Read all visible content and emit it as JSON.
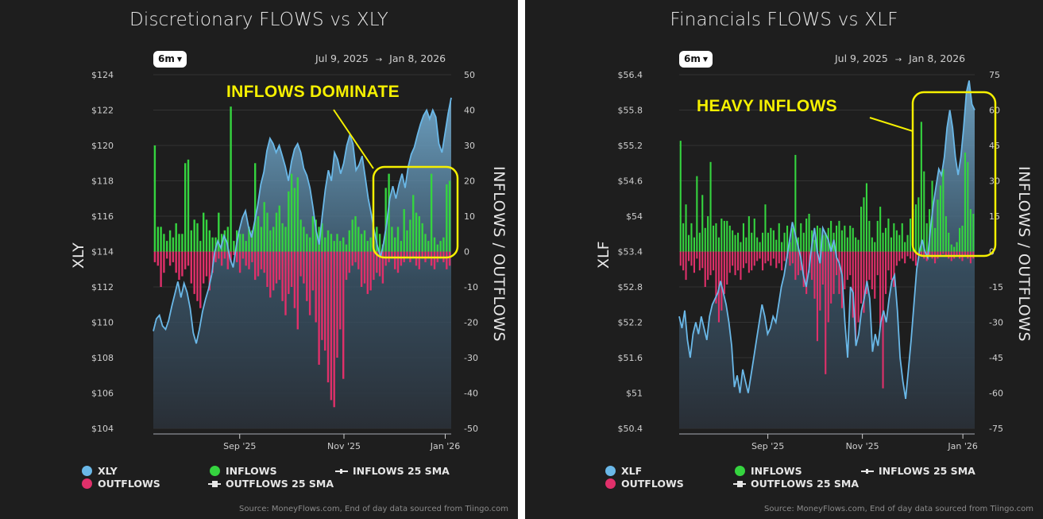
{
  "colors": {
    "panel_bg": "#1e1e1e",
    "price_line": "#6ab8e8",
    "inflows": "#35d43f",
    "outflows": "#e0306a",
    "annotation": "#f5f000",
    "grid": "#333333"
  },
  "panels": [
    {
      "title": "Discretionary FLOWS vs XLY",
      "range_button": "6m",
      "date_start": "Jul 9, 2025",
      "date_arrow": "→",
      "date_end": "Jan 8, 2026",
      "left_axis_label": "XLY",
      "right_axis_label": "INFLOWS / OUTFLOWS",
      "annotation": "INFLOWS DOMINATE",
      "legend": {
        "price": "XLY",
        "inflows": "INFLOWS",
        "inflows_sma": "INFLOWS 25 SMA",
        "outflows": "OUTFLOWS",
        "outflows_sma": "OUTFLOWS 25 SMA"
      },
      "source": "Source: MoneyFlows.com, End of day data sourced from Tiingo.com"
    },
    {
      "title": "Financials FLOWS vs XLF",
      "range_button": "6m",
      "date_start": "Jul 9, 2025",
      "date_arrow": "→",
      "date_end": "Jan 8, 2026",
      "left_axis_label": "XLF",
      "right_axis_label": "INFLOWS / OUTFLOWS",
      "annotation": "HEAVY INFLOWS",
      "legend": {
        "price": "XLF",
        "inflows": "INFLOWS",
        "inflows_sma": "INFLOWS 25 SMA",
        "outflows": "OUTFLOWS",
        "outflows_sma": "OUTFLOWS 25 SMA"
      },
      "source": "Source: MoneyFlows.com, End of day data sourced from Tiingo.com"
    }
  ],
  "chart_data": [
    {
      "type": "bar+area",
      "title": "Discretionary FLOWS vs XLY",
      "xlabel": "",
      "ylabel_left": "XLY",
      "ylabel_right": "INFLOWS / OUTFLOWS",
      "x_ticks": [
        "Sep '25",
        "Nov '25",
        "Jan '26"
      ],
      "x_tick_pos": [
        0.29,
        0.64,
        0.98
      ],
      "y_left_ticks": [
        "$124",
        "$122",
        "$120",
        "$118",
        "$116",
        "$114",
        "$112",
        "$110",
        "$108",
        "$106",
        "$104"
      ],
      "y_left_range": [
        104,
        124
      ],
      "y_right_ticks": [
        "50",
        "40",
        "30",
        "20",
        "10",
        "0",
        "-10",
        "-20",
        "-30",
        "-40",
        "-50"
      ],
      "y_right_range": [
        -50,
        50
      ],
      "legend": [
        "XLY",
        "INFLOWS",
        "INFLOWS 25 SMA",
        "OUTFLOWS",
        "OUTFLOWS 25 SMA"
      ],
      "annotation": {
        "text": "INFLOWS DOMINATE",
        "box_x_range": [
          0.74,
          1.0
        ],
        "box_y_range": [
          0,
          22
        ]
      },
      "series": [
        {
          "name": "XLY",
          "kind": "area",
          "values": [
            109.5,
            110.2,
            110.4,
            109.8,
            109.6,
            110.1,
            110.9,
            111.6,
            112.3,
            111.4,
            112.2,
            111.7,
            110.8,
            109.4,
            108.8,
            109.6,
            110.6,
            111.3,
            111.9,
            112.7,
            114.0,
            114.6,
            114.2,
            114.9,
            114.5,
            113.6,
            113.1,
            114.3,
            115.2,
            115.9,
            116.3,
            115.4,
            114.8,
            115.7,
            116.6,
            117.8,
            118.5,
            119.7,
            120.4,
            120.1,
            119.6,
            120.0,
            119.4,
            118.8,
            118.0,
            119.1,
            119.8,
            120.1,
            119.6,
            118.7,
            118.3,
            117.6,
            116.5,
            115.2,
            114.4,
            116.0,
            117.5,
            118.6,
            118.0,
            119.6,
            119.2,
            118.4,
            119.0,
            120.0,
            120.6,
            120.1,
            118.6,
            118.9,
            119.4,
            118.2,
            117.0,
            116.1,
            115.1,
            114.3,
            113.7,
            114.5,
            115.6,
            117.0,
            117.7,
            117.0,
            117.8,
            118.4,
            117.6,
            118.8,
            119.5,
            119.9,
            120.6,
            121.2,
            121.7,
            122.0,
            121.5,
            122.0,
            121.6,
            120.1,
            119.6,
            120.7,
            121.8,
            122.7
          ]
        },
        {
          "name": "INFLOWS",
          "kind": "bar",
          "values": [
            30,
            7,
            7,
            5,
            3,
            6,
            4,
            8,
            5,
            5,
            25,
            26,
            6,
            9,
            8,
            3,
            11,
            9,
            6,
            4,
            4,
            11,
            5,
            6,
            7,
            41,
            3,
            6,
            5,
            5,
            3,
            7,
            6,
            25,
            10,
            7,
            14,
            11,
            6,
            7,
            11,
            13,
            8,
            7,
            17,
            22,
            18,
            21,
            9,
            7,
            5,
            4,
            10,
            9,
            7,
            8,
            4,
            6,
            5,
            3,
            5,
            3,
            4,
            2,
            6,
            9,
            10,
            7,
            5,
            6,
            3,
            4,
            3,
            7,
            5,
            2,
            18,
            22,
            7,
            4,
            7,
            3,
            12,
            6,
            9,
            16,
            11,
            10,
            8,
            5,
            3,
            22,
            4,
            2,
            3,
            4,
            19,
            20
          ]
        },
        {
          "name": "OUTFLOWS",
          "kind": "bar",
          "values": [
            -3,
            -4,
            -10,
            -6,
            -2,
            -4,
            -3,
            -6,
            -8,
            -7,
            -5,
            -4,
            -9,
            -12,
            -14,
            -16,
            -9,
            -7,
            -11,
            -6,
            -3,
            -2,
            -4,
            -2,
            -5,
            -3,
            -1,
            -3,
            -6,
            -2,
            -4,
            -5,
            -3,
            -8,
            -7,
            -5,
            -6,
            -10,
            -13,
            -11,
            -9,
            -8,
            -14,
            -18,
            -12,
            -10,
            -16,
            -22,
            -7,
            -9,
            -14,
            -18,
            -11,
            -20,
            -32,
            -25,
            -28,
            -37,
            -42,
            -44,
            -30,
            -22,
            -36,
            -8,
            -6,
            -4,
            -3,
            -5,
            -10,
            -9,
            -12,
            -11,
            -8,
            -6,
            -7,
            -9,
            -4,
            -3,
            -2,
            -5,
            -6,
            -4,
            -3,
            -2,
            -3,
            -2,
            -4,
            -5,
            -2,
            -3,
            -2,
            -4,
            -5,
            -3,
            -2,
            -3,
            -5,
            -4
          ]
        }
      ]
    },
    {
      "type": "bar+area",
      "title": "Financials FLOWS vs XLF",
      "xlabel": "",
      "ylabel_left": "XLF",
      "ylabel_right": "INFLOWS / OUTFLOWS",
      "x_ticks": [
        "Sep '25",
        "Nov '25",
        "Jan '26"
      ],
      "x_tick_pos": [
        0.3,
        0.62,
        0.96
      ],
      "y_left_ticks": [
        "$56.4",
        "$55.8",
        "$55.2",
        "$54.6",
        "$54",
        "$53.4",
        "$52.8",
        "$52.2",
        "$51.6",
        "$51",
        "$50.4"
      ],
      "y_left_range": [
        50.4,
        56.4
      ],
      "y_right_ticks": [
        "75",
        "60",
        "45",
        "30",
        "15",
        "0",
        "-15",
        "-30",
        "-45",
        "-60",
        "-75"
      ],
      "y_right_range": [
        -75,
        75
      ],
      "legend": [
        "XLF",
        "INFLOWS",
        "INFLOWS 25 SMA",
        "OUTFLOWS",
        "OUTFLOWS 25 SMA"
      ],
      "annotation": {
        "text": "HEAVY INFLOWS",
        "box_x_range": [
          0.78,
          1.0
        ],
        "box_y_range": [
          0,
          70
        ]
      },
      "series": [
        {
          "name": "XLF",
          "kind": "area",
          "values": [
            52.3,
            52.1,
            52.4,
            51.9,
            51.6,
            52.0,
            52.2,
            52.0,
            52.3,
            52.1,
            51.9,
            52.3,
            52.5,
            52.6,
            52.7,
            52.9,
            52.7,
            52.5,
            52.2,
            51.8,
            51.1,
            51.3,
            51.0,
            51.4,
            51.2,
            51.0,
            51.3,
            51.6,
            51.9,
            52.2,
            52.5,
            52.3,
            52.0,
            52.1,
            52.3,
            52.2,
            52.5,
            52.8,
            53.0,
            53.3,
            53.6,
            53.9,
            53.7,
            53.5,
            53.3,
            53.0,
            52.8,
            53.1,
            53.5,
            53.8,
            53.4,
            53.2,
            53.8,
            53.7,
            53.6,
            53.4,
            53.6,
            53.3,
            53.2,
            53.0,
            52.2,
            51.6,
            52.8,
            52.7,
            51.8,
            52.0,
            52.4,
            52.6,
            52.9,
            52.6,
            51.7,
            52.0,
            51.8,
            52.2,
            52.4,
            52.2,
            52.6,
            52.9,
            53.0,
            52.4,
            51.6,
            51.2,
            50.9,
            51.4,
            51.9,
            52.5,
            53.1,
            53.4,
            53.6,
            53.4,
            53.3,
            53.8,
            54.2,
            54.5,
            54.8,
            54.7,
            55.0,
            55.5,
            55.8,
            55.5,
            55.0,
            54.7,
            55.0,
            55.5,
            56.1,
            56.3,
            55.9,
            55.8
          ]
        },
        {
          "name": "INFLOWS",
          "kind": "bar",
          "values": [
            47,
            12,
            20,
            7,
            12,
            6,
            32,
            8,
            24,
            10,
            15,
            38,
            11,
            12,
            6,
            14,
            13,
            13,
            11,
            9,
            7,
            8,
            4,
            12,
            6,
            15,
            8,
            14,
            6,
            4,
            8,
            20,
            8,
            10,
            9,
            5,
            12,
            4,
            8,
            11,
            4,
            10,
            41,
            6,
            12,
            8,
            14,
            16,
            9,
            5,
            11,
            10,
            7,
            8,
            10,
            13,
            8,
            11,
            13,
            9,
            11,
            6,
            11,
            10,
            6,
            5,
            19,
            23,
            29,
            13,
            6,
            4,
            13,
            19,
            8,
            10,
            14,
            6,
            12,
            9,
            7,
            12,
            4,
            7,
            14,
            18,
            20,
            23,
            55,
            34,
            12,
            18,
            30,
            10,
            22,
            28,
            35,
            15,
            8,
            3,
            2,
            4,
            10,
            11,
            42,
            38,
            18,
            16
          ]
        },
        {
          "name": "OUTFLOWS",
          "kind": "bar",
          "values": [
            -6,
            -8,
            -12,
            -4,
            -6,
            -9,
            -3,
            -8,
            -7,
            -15,
            -12,
            -10,
            -8,
            -22,
            -30,
            -25,
            -18,
            -14,
            -9,
            -6,
            -10,
            -8,
            -12,
            -7,
            -5,
            -9,
            -8,
            -6,
            -4,
            -3,
            -8,
            -5,
            -4,
            -6,
            -3,
            -7,
            -5,
            -8,
            -4,
            -3,
            -6,
            -5,
            -12,
            -10,
            -8,
            -15,
            -18,
            -9,
            -12,
            -20,
            -38,
            -25,
            -14,
            -52,
            -30,
            -22,
            -18,
            -10,
            -18,
            -24,
            -16,
            -12,
            -10,
            -28,
            -38,
            -30,
            -22,
            -26,
            -18,
            -12,
            -16,
            -20,
            -10,
            -32,
            -58,
            -18,
            -8,
            -12,
            -15,
            -6,
            -4,
            -3,
            -5,
            -2,
            -3,
            -4,
            -6,
            -3,
            -2,
            -3,
            -4,
            -2,
            -3,
            -5,
            -3,
            -2,
            -1,
            -2,
            -3,
            -4,
            -3,
            -2,
            -3,
            -4,
            -2,
            -3,
            -5,
            -3
          ]
        }
      ]
    }
  ]
}
